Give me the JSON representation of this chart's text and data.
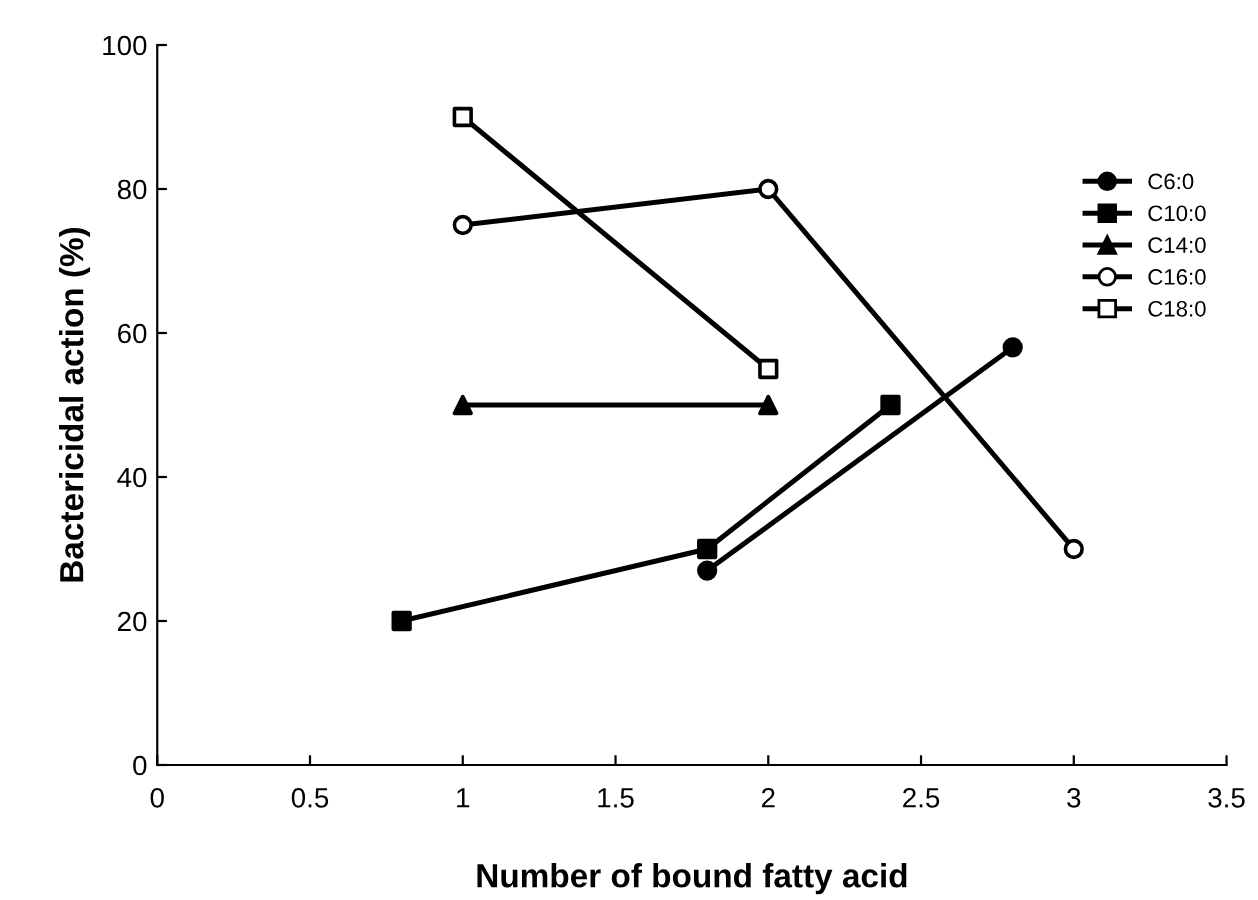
{
  "chart_data": {
    "type": "line",
    "xlabel": "Number of bound fatty acid",
    "ylabel": "Bactericidal action (%)",
    "xlim": [
      0,
      3.5
    ],
    "xticks": [
      0,
      0.5,
      1,
      1.5,
      2,
      2.5,
      3,
      3.5
    ],
    "ylim": [
      0,
      100
    ],
    "yticks": [
      0,
      20,
      40,
      60,
      80,
      100
    ],
    "grid": false,
    "legend": "top right",
    "series": [
      {
        "name": "C6:0",
        "color": "#000000",
        "marker": "circle",
        "colors": [
          "#000000",
          "#000000"
        ],
        "x": [
          1.8,
          2.8
        ],
        "values": [
          27,
          58
        ]
      },
      {
        "name": "C10:0",
        "color": "#000000",
        "marker": "square",
        "colors": [
          "#000000",
          "#000000",
          "#000000"
        ],
        "x": [
          0.8,
          1.8,
          2.4
        ],
        "values": [
          20,
          30,
          50
        ]
      },
      {
        "name": "C14:0",
        "color": "#000000",
        "marker": "triangle",
        "colors": [
          "#000000",
          "#000000"
        ],
        "x": [
          1,
          2
        ],
        "values": [
          50,
          50
        ]
      },
      {
        "name": "C16:0",
        "color": "#000000",
        "marker": "circle",
        "colors": [
          "#ffffff",
          "#ffffff",
          "#ffffff"
        ],
        "x": [
          1,
          2,
          3
        ],
        "values": [
          75,
          80,
          30
        ]
      },
      {
        "name": "C18:0",
        "color": "#000000",
        "marker": "square",
        "colors": [
          "#ffffff",
          "#ffffff"
        ],
        "x": [
          1,
          2
        ],
        "values": [
          90,
          55
        ]
      }
    ]
  }
}
